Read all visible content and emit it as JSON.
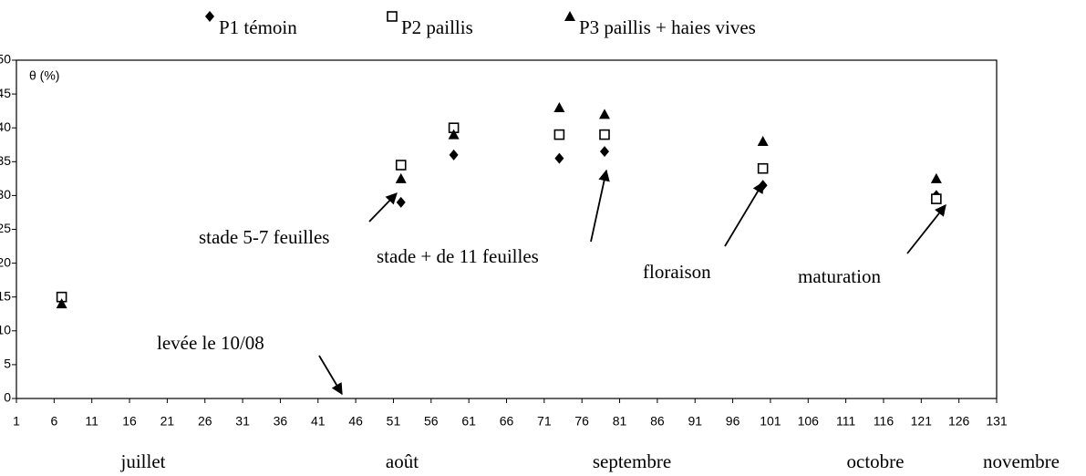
{
  "chart_data": {
    "type": "scatter",
    "y_label": "θ (%)",
    "x": [
      7,
      52,
      59,
      73,
      79,
      100,
      123
    ],
    "series": [
      {
        "name": "P1 témoin",
        "marker": "diamond",
        "color": "#000000",
        "values": [
          null,
          29,
          36,
          35.5,
          36.5,
          31.5,
          30
        ]
      },
      {
        "name": "P2 paillis",
        "marker": "square",
        "color": "#000000",
        "values": [
          15,
          34.5,
          40,
          39,
          39,
          34,
          29.5
        ]
      },
      {
        "name": "P3 paillis + haies vives",
        "marker": "triangle",
        "color": "#000000",
        "values": [
          14,
          32.5,
          39,
          43,
          42,
          38,
          32.5
        ]
      }
    ],
    "xlim": [
      1,
      131
    ],
    "xticks": [
      1,
      6,
      11,
      16,
      21,
      26,
      31,
      36,
      41,
      46,
      51,
      56,
      61,
      66,
      71,
      76,
      81,
      86,
      91,
      96,
      101,
      106,
      111,
      116,
      121,
      126,
      131
    ],
    "ylim": [
      0,
      50
    ],
    "yticks": [
      0,
      5,
      10,
      15,
      20,
      25,
      30,
      35,
      40,
      45,
      50
    ],
    "month_labels": [
      "juillet",
      "août",
      "septembre",
      "octobre",
      "novembre"
    ],
    "annotations": [
      "stade 5-7 feuilles",
      "stade + de 11 feuilles",
      "floraison",
      "maturation",
      "levée le 10/08"
    ]
  }
}
